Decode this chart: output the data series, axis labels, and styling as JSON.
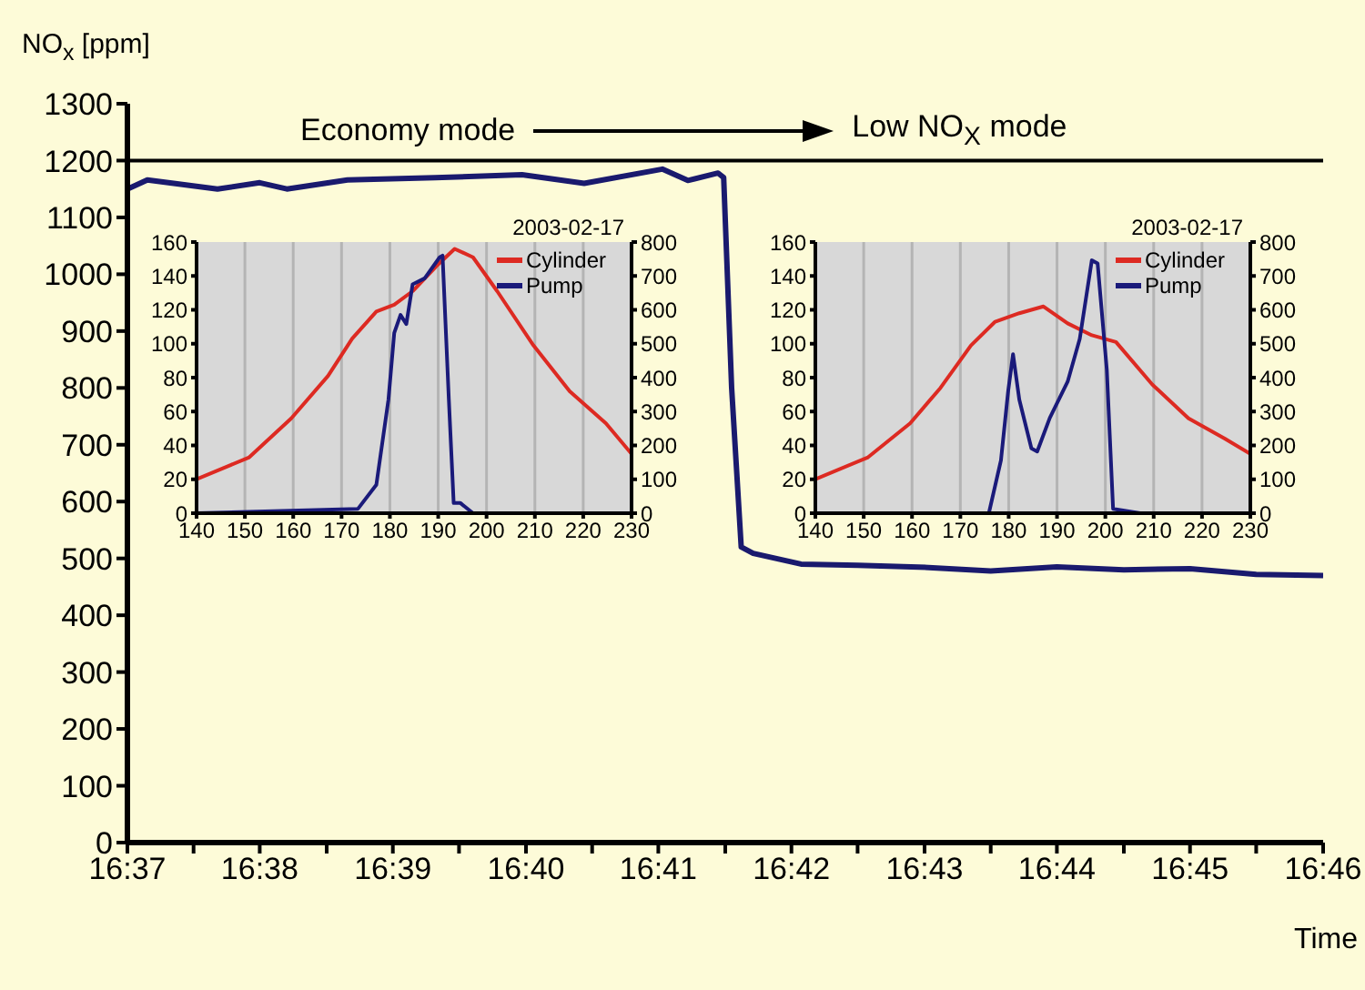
{
  "chart_data": [
    {
      "type": "line",
      "xlabel": "Time",
      "ylabel": "NO$_{x}$ [ppm]",
      "annotations": [
        "Economy mode",
        "Low NO$_{X}$ mode"
      ],
      "x": [
        16.6167,
        16.6192,
        16.628,
        16.6333,
        16.6367,
        16.6443,
        16.6553,
        16.6662,
        16.674,
        16.6838,
        16.687,
        16.6908,
        16.6915,
        16.6925,
        16.6937,
        16.6952,
        16.7012,
        16.7083,
        16.7172,
        16.725,
        16.7333,
        16.7417,
        16.75,
        16.7583,
        16.7667
      ],
      "series": [
        {
          "color": "#1a1a6e",
          "values": [
            1150,
            1166,
            1150,
            1161,
            1150,
            1166,
            1170,
            1175,
            1160,
            1185,
            1165,
            1178,
            1170,
            800,
            520,
            509,
            490,
            488,
            484,
            478,
            485,
            480,
            482,
            472,
            470
          ]
        }
      ],
      "xlim": [
        16.6167,
        16.7667
      ],
      "xticks": [
        {
          "value": 16.6167,
          "label": "16:37"
        },
        {
          "value": 16.625,
          "label": null
        },
        {
          "value": 16.6333,
          "label": "16:38"
        },
        {
          "value": 16.6417,
          "label": null
        },
        {
          "value": 16.65,
          "label": "16:39"
        },
        {
          "value": 16.6583,
          "label": null
        },
        {
          "value": 16.6667,
          "label": "16:40"
        },
        {
          "value": 16.675,
          "label": null
        },
        {
          "value": 16.6833,
          "label": "16:41"
        },
        {
          "value": 16.6917,
          "label": null
        },
        {
          "value": 16.7,
          "label": "16:42"
        },
        {
          "value": 16.7083,
          "label": null
        },
        {
          "value": 16.7167,
          "label": "16:43"
        },
        {
          "value": 16.725,
          "label": null
        },
        {
          "value": 16.7333,
          "label": "16:44"
        },
        {
          "value": 16.7417,
          "label": null
        },
        {
          "value": 16.75,
          "label": "16:45"
        },
        {
          "value": 16.7583,
          "label": null
        },
        {
          "value": 16.7667,
          "label": "16:46"
        }
      ],
      "ylim": [
        0,
        1300
      ],
      "yticks": [
        0,
        100,
        200,
        300,
        400,
        500,
        600,
        700,
        800,
        900,
        1000,
        1100,
        1200,
        1300
      ],
      "ref_lines": [
        {
          "axis": "y",
          "value": 1200,
          "color": "#000000"
        }
      ]
    },
    {
      "type": "line",
      "annotations": [
        "2003-02-17"
      ],
      "legend": "top right",
      "grid": true,
      "marker": "none",
      "series": [
        {
          "name": "Cylinder",
          "color": "#dd2a22",
          "x": [
            140,
            150.9,
            159.6,
            167.2,
            172.2,
            177.2,
            180.9,
            184.7,
            189.7,
            193.4,
            197.2,
            202.2,
            209.7,
            217.2,
            224.7,
            230
          ],
          "values": [
            20,
            33,
            56,
            81,
            103,
            119,
            123,
            131,
            146,
            156,
            151,
            131,
            99,
            72,
            53,
            35
          ]
        },
        {
          "name": "Pump",
          "color": "#1a1a7a",
          "axis": "y2",
          "x": [
            140,
            173.4,
            177.2,
            179.7,
            180.9,
            182.2,
            183.4,
            184.7,
            187.2,
            190.3,
            190.9,
            192.2,
            193.2,
            194.6,
            197.2,
            230
          ],
          "values": [
            0,
            13,
            84,
            335,
            532,
            585,
            558,
            675,
            693,
            755,
            760,
            335,
            30,
            30,
            0,
            0
          ]
        }
      ],
      "xlim": [
        140,
        230
      ],
      "xticks": [
        140,
        150,
        160,
        170,
        180,
        190,
        200,
        210,
        220,
        230
      ],
      "ylim": [
        0,
        160
      ],
      "yticks": [
        0,
        20,
        40,
        60,
        80,
        100,
        120,
        140,
        160
      ],
      "y2lim": [
        0,
        800
      ],
      "y2ticks": [
        0,
        100,
        200,
        300,
        400,
        500,
        600,
        700,
        800
      ]
    },
    {
      "type": "line",
      "annotations": [
        "2003-02-17"
      ],
      "legend": "top right",
      "grid": true,
      "marker": "none",
      "series": [
        {
          "name": "Cylinder",
          "color": "#dd2a22",
          "x": [
            140,
            150.9,
            159.6,
            165.9,
            172.2,
            177.2,
            182.2,
            187.2,
            192.2,
            197.2,
            202.2,
            209.7,
            217.2,
            224.7,
            230
          ],
          "values": [
            20,
            33,
            53,
            74,
            99,
            113,
            118,
            122,
            112,
            105,
            101,
            76,
            56,
            44,
            35
          ]
        },
        {
          "name": "Pump",
          "color": "#1a1a7a",
          "axis": "y2",
          "x": [
            140,
            175.9,
            178.4,
            179.9,
            180.9,
            182.2,
            184.7,
            185.9,
            188.5,
            192.2,
            194.7,
            197.2,
            198.4,
            200.3,
            201.6,
            207.2,
            230
          ],
          "values": [
            0,
            0,
            156,
            361,
            469,
            335,
            191,
            182,
            281,
            388,
            514,
            746,
            737,
            424,
            13,
            0,
            0
          ]
        }
      ],
      "xlim": [
        140,
        230
      ],
      "xticks": [
        140,
        150,
        160,
        170,
        180,
        190,
        200,
        210,
        220,
        230
      ],
      "ylim": [
        0,
        160
      ],
      "yticks": [
        0,
        20,
        40,
        60,
        80,
        100,
        120,
        140,
        160
      ],
      "y2lim": [
        0,
        800
      ],
      "y2ticks": [
        0,
        100,
        200,
        300,
        400,
        500,
        600,
        700,
        800
      ]
    }
  ]
}
